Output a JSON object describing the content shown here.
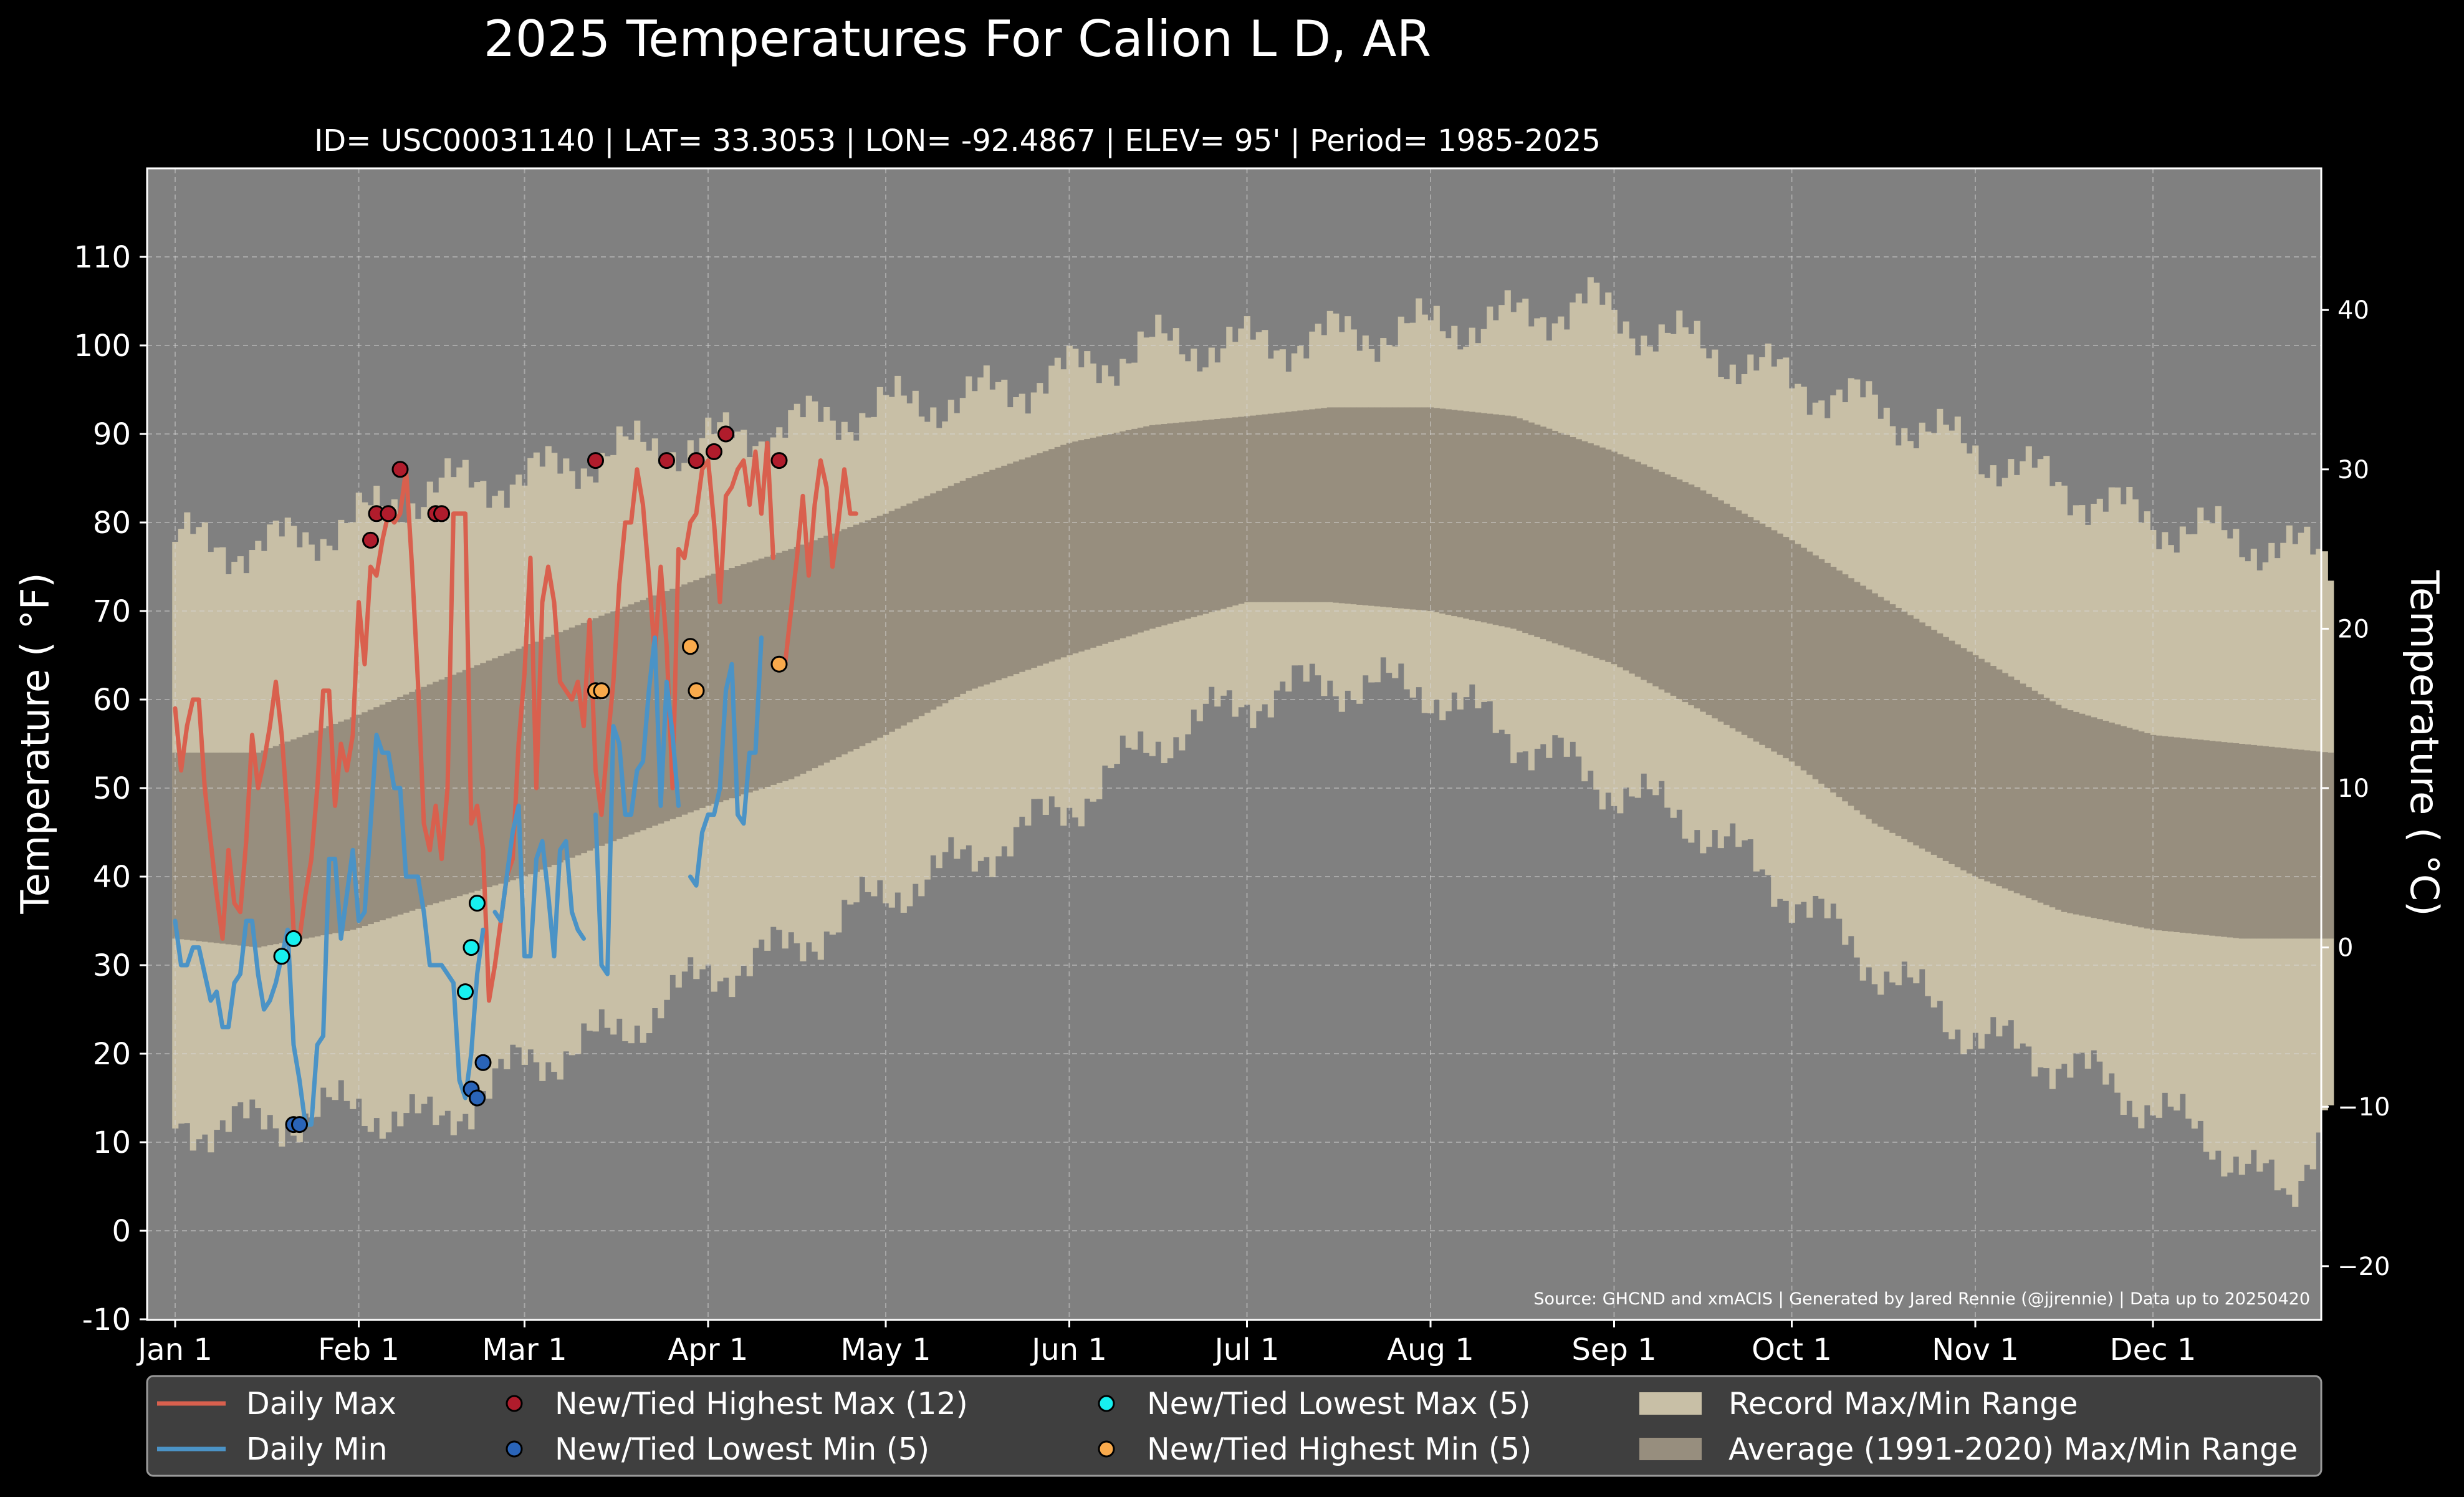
{
  "chart_data": {
    "type": "line",
    "title": "2025 Temperatures For Calion L D, AR",
    "subtitle": "ID= USC00031140 | LAT= 33.3053 | LON= -92.4867 | ELEV= 95' | Period= 1985-2025",
    "ylabel": "Temperature ($^\\circ$F)",
    "ylabel_display": "Temperature ( °F)",
    "ylabel_right": "Temperature ( °C)",
    "source": "Source: GHCND and xmACIS | Generated by Jared Rennie (@jjrennie) | Data up to 20250420",
    "ylim": [
      -10,
      120
    ],
    "xlim": [
      0,
      365
    ],
    "yticks": [
      -10,
      0,
      10,
      20,
      30,
      40,
      50,
      60,
      70,
      80,
      90,
      100,
      110
    ],
    "yticks_right": [
      -20,
      -10,
      0,
      10,
      20,
      30,
      40
    ],
    "month_ticks": [
      {
        "label": "Jan 1",
        "day": 1
      },
      {
        "label": "Feb 1",
        "day": 32
      },
      {
        "label": "Mar 1",
        "day": 60
      },
      {
        "label": "Apr 1",
        "day": 91
      },
      {
        "label": "May 1",
        "day": 121
      },
      {
        "label": "Jun 1",
        "day": 152
      },
      {
        "label": "Jul 1",
        "day": 182
      },
      {
        "label": "Aug 1",
        "day": 213
      },
      {
        "label": "Sep 1",
        "day": 244
      },
      {
        "label": "Oct 1",
        "day": 274
      },
      {
        "label": "Nov 1",
        "day": 305
      },
      {
        "label": "Dec 1",
        "day": 335
      }
    ],
    "grid": true,
    "colors": {
      "daily_max": "#d9604e",
      "daily_min": "#4b93c6",
      "new_high_max": "#b01c2c",
      "new_low_min": "#2a64b8",
      "new_low_max": "#17f0f0",
      "new_high_min": "#f9aa4c",
      "record_range": "#c8bfa6",
      "average_range": "#978e7e",
      "plot_bg": "#808080"
    },
    "record_max_anchors": [
      [
        1,
        78
      ],
      [
        15,
        77
      ],
      [
        31,
        80
      ],
      [
        45,
        84
      ],
      [
        60,
        85
      ],
      [
        75,
        88
      ],
      [
        91,
        89
      ],
      [
        105,
        91
      ],
      [
        121,
        93
      ],
      [
        135,
        94
      ],
      [
        152,
        97
      ],
      [
        166,
        100
      ],
      [
        182,
        100
      ],
      [
        196,
        101
      ],
      [
        213,
        102
      ],
      [
        227,
        103
      ],
      [
        240,
        105
      ],
      [
        244,
        103
      ],
      [
        258,
        100
      ],
      [
        274,
        96
      ],
      [
        288,
        93
      ],
      [
        305,
        88
      ],
      [
        320,
        84
      ],
      [
        335,
        80
      ],
      [
        350,
        78
      ],
      [
        365,
        76
      ]
    ],
    "record_min_anchors": [
      [
        1,
        12
      ],
      [
        15,
        12
      ],
      [
        31,
        14
      ],
      [
        45,
        12
      ],
      [
        60,
        19
      ],
      [
        75,
        22
      ],
      [
        91,
        29
      ],
      [
        105,
        32
      ],
      [
        121,
        38
      ],
      [
        135,
        42
      ],
      [
        152,
        48
      ],
      [
        166,
        55
      ],
      [
        182,
        60
      ],
      [
        196,
        62
      ],
      [
        213,
        61
      ],
      [
        227,
        56
      ],
      [
        244,
        50
      ],
      [
        258,
        46
      ],
      [
        274,
        38
      ],
      [
        288,
        30
      ],
      [
        305,
        22
      ],
      [
        320,
        19
      ],
      [
        335,
        14
      ],
      [
        350,
        8
      ],
      [
        358,
        3
      ],
      [
        365,
        16
      ]
    ],
    "average_max_anchors": [
      [
        1,
        54
      ],
      [
        15,
        54
      ],
      [
        31,
        58
      ],
      [
        45,
        62
      ],
      [
        60,
        66
      ],
      [
        75,
        70
      ],
      [
        91,
        74
      ],
      [
        105,
        77
      ],
      [
        121,
        81
      ],
      [
        135,
        85
      ],
      [
        152,
        89
      ],
      [
        166,
        91
      ],
      [
        182,
        92
      ],
      [
        196,
        93
      ],
      [
        213,
        93
      ],
      [
        227,
        92
      ],
      [
        244,
        88
      ],
      [
        258,
        84
      ],
      [
        274,
        78
      ],
      [
        288,
        72
      ],
      [
        305,
        65
      ],
      [
        320,
        59
      ],
      [
        335,
        56
      ],
      [
        350,
        55
      ],
      [
        365,
        54
      ]
    ],
    "average_min_anchors": [
      [
        1,
        33
      ],
      [
        15,
        32
      ],
      [
        31,
        34
      ],
      [
        45,
        37
      ],
      [
        60,
        40
      ],
      [
        75,
        44
      ],
      [
        91,
        48
      ],
      [
        105,
        51
      ],
      [
        121,
        56
      ],
      [
        135,
        61
      ],
      [
        152,
        65
      ],
      [
        166,
        68
      ],
      [
        182,
        71
      ],
      [
        196,
        71
      ],
      [
        213,
        70
      ],
      [
        227,
        68
      ],
      [
        244,
        64
      ],
      [
        258,
        59
      ],
      [
        274,
        53
      ],
      [
        288,
        46
      ],
      [
        305,
        40
      ],
      [
        320,
        36
      ],
      [
        335,
        34
      ],
      [
        350,
        33
      ],
      [
        365,
        33
      ]
    ],
    "series": [
      {
        "name": "Daily Max",
        "values": [
          59,
          52,
          57,
          60,
          60,
          50,
          44,
          38,
          33,
          43,
          37,
          36,
          44,
          56,
          50,
          53,
          57,
          62,
          56,
          47,
          34,
          33,
          38,
          42,
          50,
          61,
          61,
          48,
          55,
          52,
          56,
          71,
          64,
          75,
          74,
          78,
          81,
          80,
          81,
          86,
          75,
          62,
          46,
          43,
          48,
          42,
          50,
          81,
          81,
          81,
          46,
          48,
          43,
          26,
          30,
          35,
          40,
          42,
          55,
          63,
          76,
          50,
          71,
          75,
          71,
          62,
          61,
          60,
          62,
          57,
          69,
          52,
          47,
          55,
          62,
          73,
          80,
          80,
          86,
          82,
          74,
          65,
          75,
          66,
          50,
          77,
          76,
          80,
          81,
          86,
          87,
          80,
          71,
          83,
          84,
          86,
          87,
          82,
          88,
          81,
          89,
          76,
          null,
          64,
          70,
          76,
          83,
          74,
          82,
          87,
          84,
          75,
          80,
          86,
          81,
          81
        ],
        "gaps_note": ""
      },
      {
        "name": "Daily Min",
        "values": [
          35,
          30,
          30,
          32,
          32,
          29,
          26,
          27,
          23,
          23,
          28,
          29,
          35,
          35,
          29,
          25,
          26,
          28,
          31,
          34,
          21,
          17,
          12,
          12,
          21,
          22,
          42,
          42,
          33,
          38,
          43,
          35,
          36,
          46,
          56,
          54,
          54,
          50,
          50,
          40,
          40,
          40,
          36,
          30,
          30,
          30,
          29,
          28,
          17,
          15,
          20,
          29,
          34,
          null,
          36,
          35,
          40,
          45,
          48,
          31,
          31,
          42,
          44,
          38,
          31,
          43,
          44,
          36,
          34,
          33,
          null,
          47,
          30,
          29,
          57,
          55,
          47,
          47,
          52,
          53,
          61,
          67,
          48,
          62,
          56,
          48,
          null,
          40,
          39,
          45,
          47,
          47,
          50,
          61,
          64,
          47,
          46,
          54,
          54,
          67
        ],
        "start_day_offset_note": ""
      }
    ],
    "markers": [
      {
        "name": "New/Tied Highest Max (12)",
        "points": [
          [
            34,
            78
          ],
          [
            35,
            81
          ],
          [
            37,
            81
          ],
          [
            39,
            86
          ],
          [
            45,
            81
          ],
          [
            46,
            81
          ],
          [
            72,
            87
          ],
          [
            84,
            87
          ],
          [
            89,
            87
          ],
          [
            92,
            88
          ],
          [
            94,
            90
          ],
          [
            103,
            87
          ]
        ]
      },
      {
        "name": "New/Tied Lowest Min (5)",
        "points": [
          [
            21,
            12
          ],
          [
            22,
            12
          ],
          [
            51,
            16
          ],
          [
            52,
            15
          ],
          [
            53,
            19
          ]
        ]
      },
      {
        "name": "New/Tied Lowest Max (5)",
        "points": [
          [
            19,
            31
          ],
          [
            21,
            33
          ],
          [
            50,
            27
          ],
          [
            51,
            32
          ],
          [
            52,
            37
          ]
        ]
      },
      {
        "name": "New/Tied Highest Min (5)",
        "points": [
          [
            72,
            61
          ],
          [
            73,
            61
          ],
          [
            88,
            66
          ],
          [
            89,
            61
          ],
          [
            103,
            64
          ]
        ]
      }
    ],
    "legend": {
      "placement": "bottom",
      "entries": [
        {
          "label": "Daily Max",
          "kind": "line",
          "color": "#d9604e"
        },
        {
          "label": "New/Tied Highest Max (12)",
          "kind": "marker",
          "color": "#b01c2c"
        },
        {
          "label": "New/Tied Lowest Max (5)",
          "kind": "marker",
          "color": "#17f0f0"
        },
        {
          "label": "Record Max/Min Range",
          "kind": "patch",
          "color": "#c8bfa6"
        },
        {
          "label": "Daily Min",
          "kind": "line",
          "color": "#4b93c6"
        },
        {
          "label": "New/Tied Lowest Min (5)",
          "kind": "marker",
          "color": "#2a64b8"
        },
        {
          "label": "New/Tied Highest Min (5)",
          "kind": "marker",
          "color": "#f9aa4c"
        },
        {
          "label": "Average (1991-2020) Max/Min Range",
          "kind": "patch",
          "color": "#978e7e"
        }
      ]
    }
  }
}
